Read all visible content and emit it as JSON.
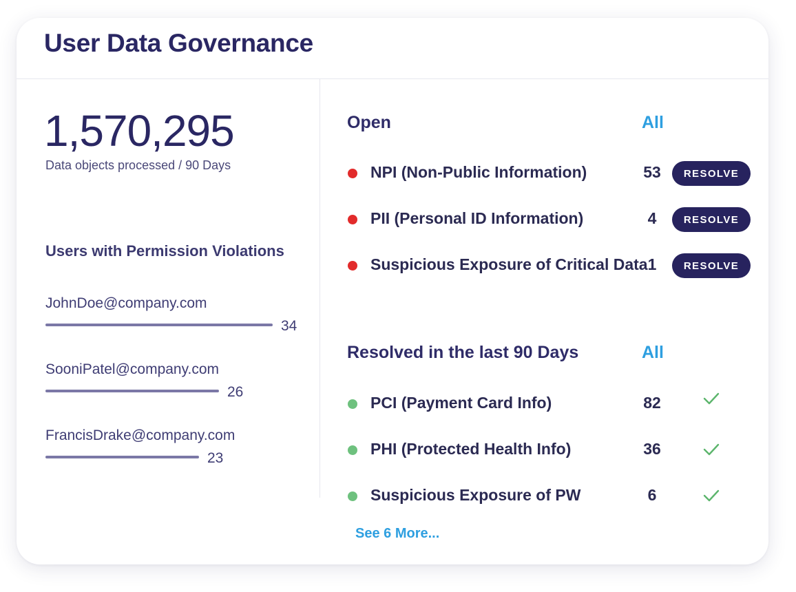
{
  "header": {
    "title": "User Data Governance"
  },
  "summary": {
    "value": "1,570,295",
    "caption": "Data objects processed / 90 Days"
  },
  "violations": {
    "heading": "Users with Permission Violations",
    "max": 34,
    "users": [
      {
        "email": "JohnDoe@company.com",
        "count": 34
      },
      {
        "email": "SooniPatel@company.com",
        "count": 26
      },
      {
        "email": "FrancisDrake@company.com",
        "count": 23
      }
    ]
  },
  "open": {
    "heading": "Open",
    "all_label": "All",
    "items": [
      {
        "label": "NPI (Non-Public Information)",
        "count": "53",
        "button": "RESOLVE"
      },
      {
        "label": "PII (Personal ID Information)",
        "count": "4",
        "button": "RESOLVE"
      },
      {
        "label": "Suspicious Exposure of Critical Data",
        "count": "1",
        "button": "RESOLVE"
      }
    ]
  },
  "resolved": {
    "heading": "Resolved in the last 90 Days",
    "all_label": "All",
    "items": [
      {
        "label": "PCI (Payment Card Info)",
        "count": "82"
      },
      {
        "label": "PHI (Protected Health Info)",
        "count": "36"
      },
      {
        "label": "Suspicious Exposure of PW",
        "count": "6"
      }
    ],
    "see_more": "See 6 More..."
  },
  "colors": {
    "navy": "#27235e",
    "link": "#2e9fe0",
    "open_dot": "#e22b2b",
    "resolved_dot": "#6ec17e",
    "bar": "#7b78a6"
  }
}
